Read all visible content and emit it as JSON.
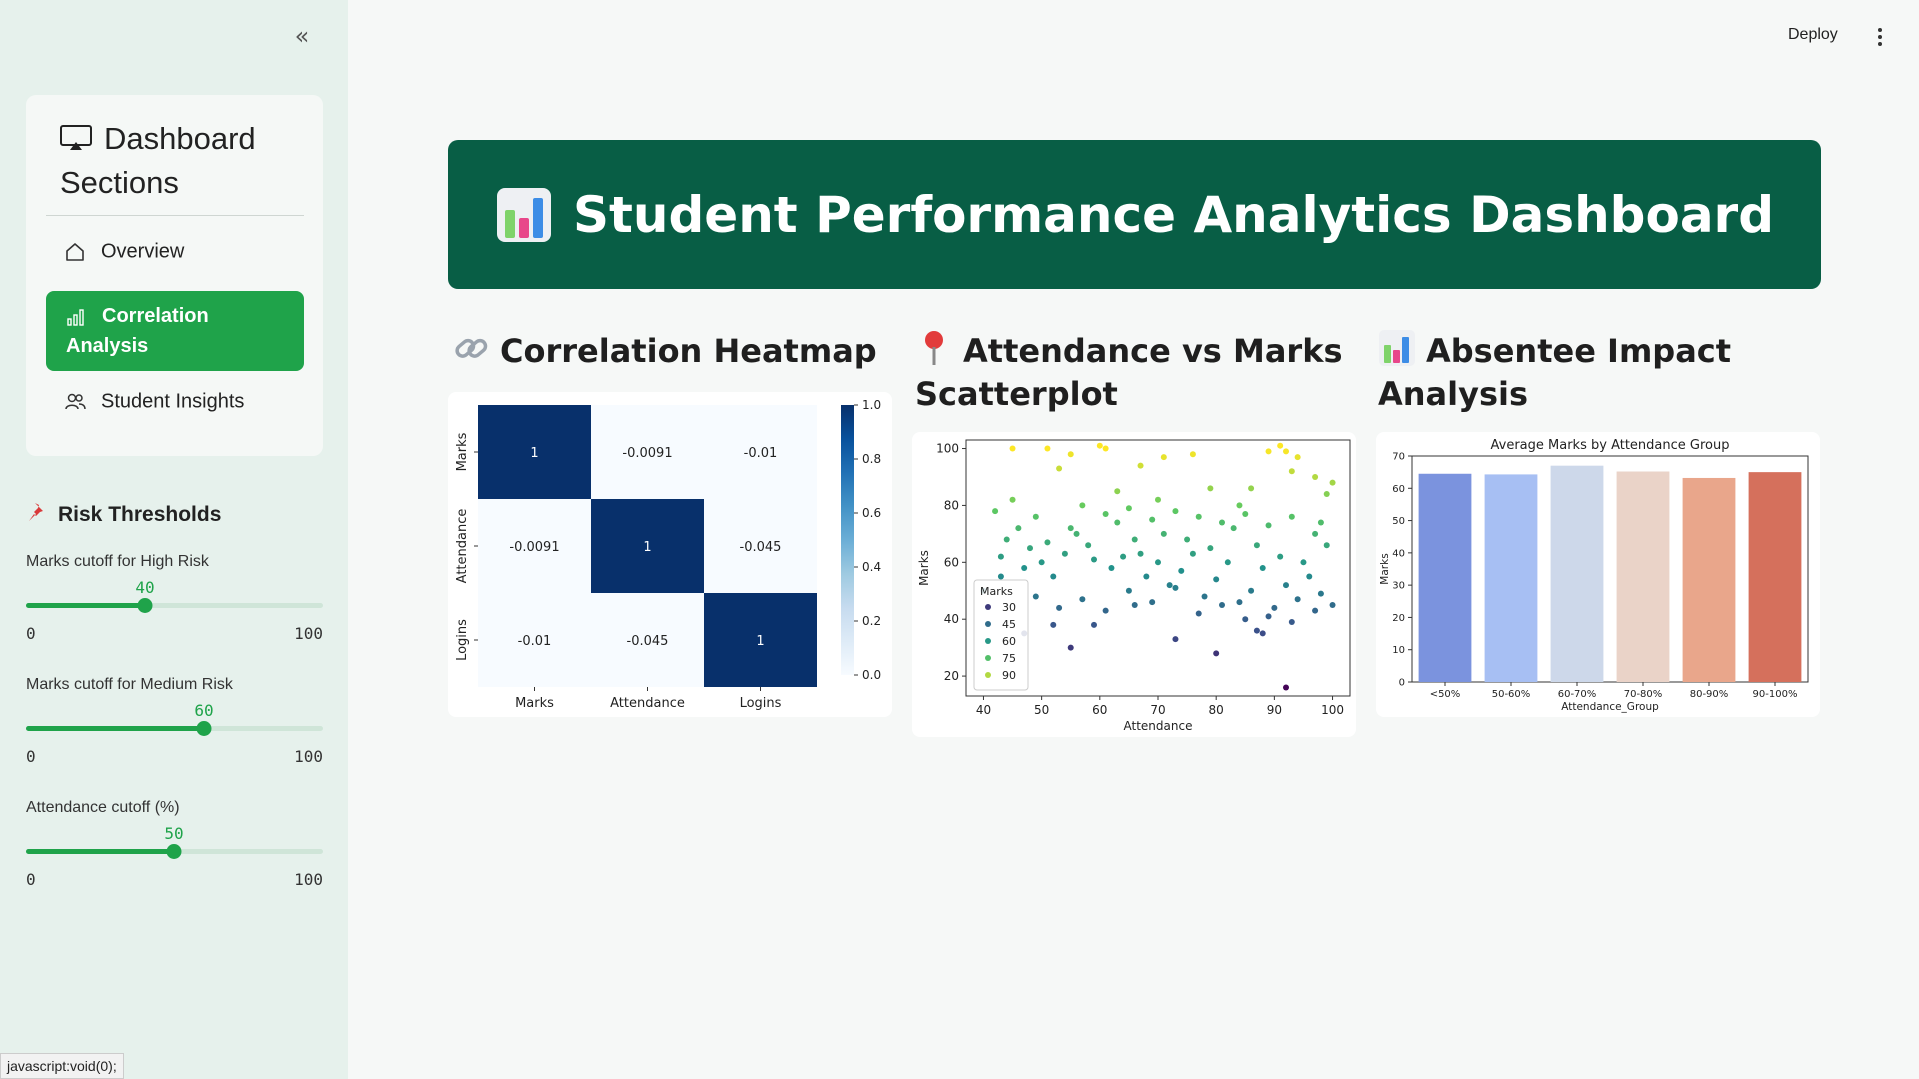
{
  "sidebar": {
    "collapse_label": "«",
    "nav_title": "Dashboard Sections",
    "nav_items": [
      {
        "label": "Overview",
        "icon": "home-icon",
        "active": false
      },
      {
        "label": "Correlation Analysis",
        "icon": "bar-chart-icon",
        "active": true
      },
      {
        "label": "Student Insights",
        "icon": "users-icon",
        "active": false
      }
    ],
    "risk_title": "Risk Thresholds",
    "sliders": [
      {
        "label": "Marks cutoff for High Risk",
        "value": 40,
        "min": 0,
        "max": 100
      },
      {
        "label": "Marks cutoff for Medium Risk",
        "value": 60,
        "min": 0,
        "max": 100
      },
      {
        "label": "Attendance cutoff (%)",
        "value": 50,
        "min": 0,
        "max": 100
      }
    ]
  },
  "header": {
    "deploy_label": "Deploy",
    "menu_icon": "kebab-menu-icon"
  },
  "banner": {
    "title": "Student Performance Analytics Dashboard"
  },
  "sections": {
    "heatmap_title": "Correlation Heatmap",
    "scatter_title": "Attendance vs Marks Scatterplot",
    "bar_title": "Absentee Impact Analysis"
  },
  "status_bar": "javascript:void(0);",
  "colors": {
    "sidebar_bg": "#e6f1ec",
    "accent": "#1fa34a",
    "banner_bg": "#085e45"
  },
  "chart_data": [
    {
      "type": "heatmap",
      "rows": [
        "Marks",
        "Attendance",
        "Logins"
      ],
      "columns": [
        "Marks",
        "Attendance",
        "Logins"
      ],
      "values": [
        [
          1,
          -0.0091,
          -0.01
        ],
        [
          -0.0091,
          1,
          -0.045
        ],
        [
          -0.01,
          -0.045,
          1
        ]
      ],
      "colorbar_ticks": [
        "0.0",
        "0.2",
        "0.4",
        "0.6",
        "0.8",
        "1.0"
      ],
      "colorbar_range": [
        0,
        1
      ]
    },
    {
      "type": "scatter",
      "xlabel": "Attendance",
      "ylabel": "Marks",
      "xlim": [
        37,
        103
      ],
      "ylim": [
        13,
        103
      ],
      "x_ticks": [
        40,
        50,
        60,
        70,
        80,
        90,
        100
      ],
      "y_ticks": [
        20,
        40,
        60,
        80,
        100
      ],
      "legend_title": "Marks",
      "legend_entries": [
        "30",
        "45",
        "60",
        "75",
        "90"
      ],
      "legend_position": "lower-left",
      "points": [
        [
          92,
          16
        ],
        [
          80,
          28
        ],
        [
          52,
          38
        ],
        [
          55,
          30
        ],
        [
          73,
          33
        ],
        [
          88,
          35
        ],
        [
          47,
          35
        ],
        [
          66,
          45
        ],
        [
          87,
          36
        ],
        [
          59,
          38
        ],
        [
          40,
          50
        ],
        [
          43,
          55
        ],
        [
          45,
          100
        ],
        [
          53,
          93
        ],
        [
          55,
          98
        ],
        [
          60,
          101
        ],
        [
          61,
          100
        ],
        [
          67,
          94
        ],
        [
          71,
          97
        ],
        [
          76,
          98
        ],
        [
          89,
          99
        ],
        [
          91,
          101
        ],
        [
          92,
          99
        ],
        [
          93,
          92
        ],
        [
          94,
          97
        ],
        [
          97,
          90
        ],
        [
          99,
          84
        ],
        [
          100,
          88
        ],
        [
          51,
          100
        ],
        [
          63,
          85
        ],
        [
          70,
          82
        ],
        [
          79,
          86
        ],
        [
          84,
          80
        ],
        [
          86,
          86
        ],
        [
          98,
          74
        ],
        [
          42,
          78
        ],
        [
          44,
          68
        ],
        [
          46,
          72
        ],
        [
          48,
          65
        ],
        [
          50,
          60
        ],
        [
          52,
          55
        ],
        [
          54,
          63
        ],
        [
          56,
          70
        ],
        [
          58,
          66
        ],
        [
          62,
          58
        ],
        [
          64,
          62
        ],
        [
          66,
          68
        ],
        [
          68,
          55
        ],
        [
          70,
          60
        ],
        [
          72,
          52
        ],
        [
          74,
          57
        ],
        [
          76,
          63
        ],
        [
          78,
          48
        ],
        [
          80,
          54
        ],
        [
          82,
          60
        ],
        [
          84,
          46
        ],
        [
          86,
          50
        ],
        [
          88,
          58
        ],
        [
          90,
          44
        ],
        [
          92,
          52
        ],
        [
          94,
          47
        ],
        [
          96,
          55
        ],
        [
          98,
          49
        ],
        [
          100,
          45
        ],
        [
          43,
          62
        ],
        [
          47,
          58
        ],
        [
          51,
          67
        ],
        [
          55,
          72
        ],
        [
          59,
          61
        ],
        [
          63,
          74
        ],
        [
          67,
          63
        ],
        [
          71,
          70
        ],
        [
          75,
          68
        ],
        [
          79,
          65
        ],
        [
          83,
          72
        ],
        [
          87,
          66
        ],
        [
          91,
          62
        ],
        [
          95,
          60
        ],
        [
          99,
          66
        ],
        [
          49,
          48
        ],
        [
          53,
          44
        ],
        [
          57,
          47
        ],
        [
          61,
          43
        ],
        [
          65,
          50
        ],
        [
          69,
          46
        ],
        [
          73,
          51
        ],
        [
          77,
          42
        ],
        [
          81,
          45
        ],
        [
          85,
          40
        ],
        [
          89,
          41
        ],
        [
          93,
          39
        ],
        [
          97,
          43
        ],
        [
          45,
          82
        ],
        [
          49,
          76
        ],
        [
          57,
          80
        ],
        [
          61,
          77
        ],
        [
          65,
          79
        ],
        [
          69,
          75
        ],
        [
          73,
          78
        ],
        [
          77,
          76
        ],
        [
          81,
          74
        ],
        [
          85,
          77
        ],
        [
          89,
          73
        ],
        [
          93,
          76
        ],
        [
          97,
          70
        ]
      ]
    },
    {
      "type": "bar",
      "title": "Average Marks by Attendance Group",
      "xlabel": "Attendance_Group",
      "ylabel": "Marks",
      "ylim": [
        0,
        70
      ],
      "y_ticks": [
        0,
        10,
        20,
        30,
        40,
        50,
        60,
        70
      ],
      "categories": [
        "<50%",
        "50-60%",
        "60-70%",
        "70-80%",
        "80-90%",
        "90-100%"
      ],
      "values": [
        64.5,
        64.3,
        67,
        65.2,
        63.2,
        65
      ],
      "colors": [
        "#7b93de",
        "#a7bff3",
        "#cdd8ea",
        "#ead3c8",
        "#e9a68b",
        "#d5705c"
      ]
    }
  ]
}
